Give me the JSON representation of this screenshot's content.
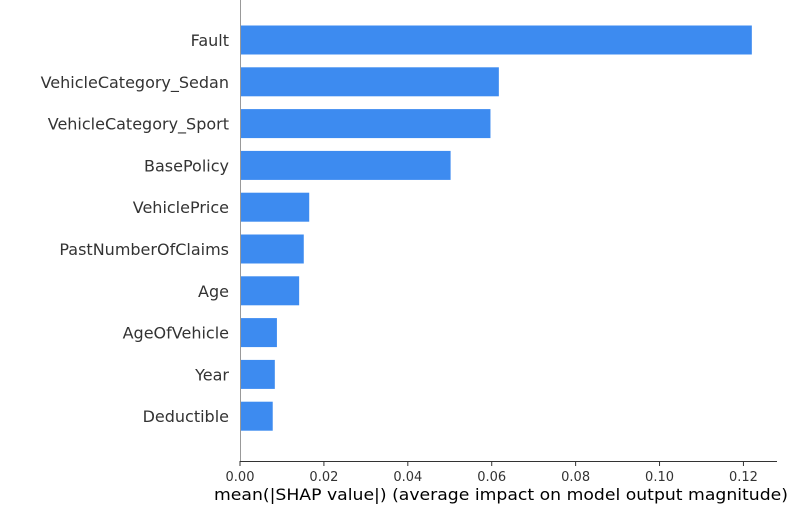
{
  "chart_data": {
    "type": "bar",
    "orientation": "horizontal",
    "categories": [
      "Fault",
      "VehicleCategory_Sedan",
      "VehicleCategory_Sport",
      "BasePolicy",
      "VehiclePrice",
      "PastNumberOfClaims",
      "Age",
      "AgeOfVehicle",
      "Year",
      "Deductible"
    ],
    "values": [
      0.122,
      0.0617,
      0.0597,
      0.0502,
      0.0165,
      0.0152,
      0.0141,
      0.0088,
      0.0083,
      0.0078
    ],
    "xlabel": "mean(|SHAP value|) (average impact on model output magnitude)",
    "ylabel": "",
    "title": "",
    "xlim": [
      0,
      0.128
    ],
    "xticks": [
      0.0,
      0.02,
      0.04,
      0.06,
      0.08,
      0.1,
      0.12
    ],
    "xtick_labels": [
      "0.00",
      "0.02",
      "0.04",
      "0.06",
      "0.08",
      "0.10",
      "0.12"
    ],
    "grid": false,
    "bar_color": "#3d8bf0"
  }
}
